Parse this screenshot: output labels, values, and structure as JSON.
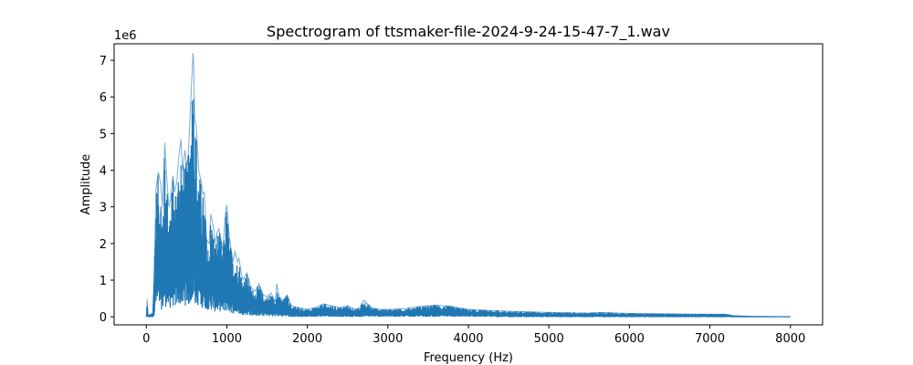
{
  "chart_data": {
    "type": "line",
    "title": "Spectrogram of ttsmaker-file-2024-9-24-15-47-7_1.wav",
    "xlabel": "Frequency (Hz)",
    "ylabel": "Amplitude",
    "y_offset_label": "1e6",
    "xlim": [
      -400,
      8400
    ],
    "ylim": [
      -0.22,
      7.45
    ],
    "x_ticks": [
      0,
      1000,
      2000,
      3000,
      4000,
      5000,
      6000,
      7000,
      8000
    ],
    "x_tick_labels": [
      "0",
      "1000",
      "2000",
      "3000",
      "4000",
      "5000",
      "6000",
      "7000",
      "8000"
    ],
    "y_ticks": [
      0,
      1,
      2,
      3,
      4,
      5,
      6,
      7
    ],
    "y_tick_labels": [
      "0",
      "1",
      "2",
      "3",
      "4",
      "5",
      "6",
      "7"
    ],
    "grid": false,
    "series_color": "#1f77b4",
    "series": [
      {
        "envelope": {
          "x": [
            0,
            10,
            20,
            40,
            80,
            100,
            120,
            150,
            180,
            200,
            230,
            250,
            280,
            300,
            330,
            350,
            380,
            400,
            430,
            450,
            480,
            500,
            520,
            550,
            580,
            590,
            600,
            620,
            650,
            680,
            700,
            720,
            750,
            780,
            800,
            830,
            850,
            880,
            900,
            930,
            950,
            980,
            1000,
            1030,
            1050,
            1080,
            1100,
            1130,
            1150,
            1180,
            1200,
            1250,
            1300,
            1350,
            1400,
            1450,
            1500,
            1550,
            1600,
            1620,
            1650,
            1700,
            1750,
            1800,
            1900,
            2000,
            2100,
            2200,
            2300,
            2400,
            2500,
            2600,
            2650,
            2700,
            2800,
            2900,
            3000,
            3200,
            3400,
            3600,
            3800,
            4000,
            4200,
            4500,
            5000,
            5500,
            5650,
            6000,
            6500,
            7000,
            7200,
            7300,
            7500,
            8000
          ],
          "max": [
            0.0,
            0.48,
            0.05,
            0.05,
            0.1,
            1.5,
            3.5,
            3.95,
            3.6,
            3.0,
            4.75,
            3.9,
            3.0,
            3.2,
            3.85,
            3.4,
            3.7,
            4.3,
            4.85,
            4.0,
            4.55,
            4.1,
            4.4,
            5.8,
            7.2,
            6.8,
            5.4,
            5.2,
            4.0,
            3.7,
            3.35,
            3.4,
            2.1,
            2.0,
            2.8,
            2.5,
            2.0,
            2.3,
            2.4,
            2.1,
            1.8,
            2.8,
            3.05,
            2.2,
            1.9,
            1.5,
            1.8,
            1.5,
            1.6,
            1.2,
            1.0,
            1.2,
            0.8,
            0.7,
            0.9,
            0.6,
            0.55,
            0.65,
            0.4,
            0.9,
            0.55,
            0.45,
            0.6,
            0.3,
            0.25,
            0.2,
            0.25,
            0.35,
            0.3,
            0.25,
            0.3,
            0.2,
            0.25,
            0.45,
            0.25,
            0.2,
            0.2,
            0.22,
            0.28,
            0.32,
            0.28,
            0.2,
            0.18,
            0.15,
            0.12,
            0.1,
            0.12,
            0.09,
            0.08,
            0.07,
            0.07,
            0.03,
            0.01,
            0.0
          ],
          "min": [
            0.0,
            0.0,
            0.0,
            0.0,
            0.0,
            0.05,
            0.2,
            0.25,
            0.2,
            0.2,
            0.25,
            0.3,
            0.2,
            0.25,
            0.3,
            0.25,
            0.3,
            0.3,
            0.35,
            0.25,
            0.3,
            0.35,
            0.3,
            0.35,
            0.4,
            0.4,
            0.35,
            0.3,
            0.3,
            0.25,
            0.25,
            0.25,
            0.2,
            0.2,
            0.2,
            0.2,
            0.15,
            0.15,
            0.15,
            0.15,
            0.15,
            0.15,
            0.15,
            0.12,
            0.12,
            0.1,
            0.1,
            0.08,
            0.08,
            0.06,
            0.06,
            0.05,
            0.04,
            0.04,
            0.03,
            0.03,
            0.03,
            0.02,
            0.02,
            0.02,
            0.02,
            0.02,
            0.01,
            0.01,
            0.01,
            0.01,
            0.01,
            0.01,
            0.01,
            0.01,
            0.01,
            0.01,
            0.01,
            0.01,
            0.01,
            0.01,
            0.01,
            0.01,
            0.01,
            0.01,
            0.01,
            0.01,
            0.01,
            0.0,
            0.0,
            0.0,
            0.0,
            0.0,
            0.0,
            0.0,
            0.0,
            0.0,
            0.0,
            0.0
          ]
        }
      }
    ]
  }
}
